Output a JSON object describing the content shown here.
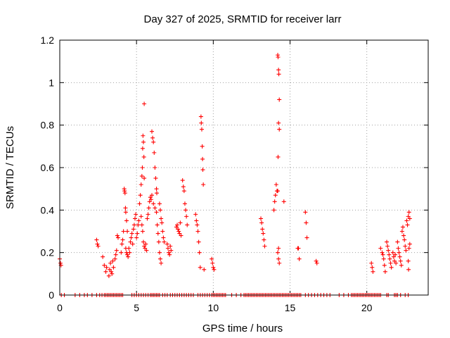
{
  "chart_data": {
    "type": "scatter",
    "title": "Day 327 of 2025, SRMTID for receiver larr",
    "xlabel": "GPS time / hours",
    "ylabel": "SRMTID / TECUs",
    "xlim": [
      0,
      24
    ],
    "ylim": [
      0,
      1.2
    ],
    "xticks": [
      0,
      5,
      10,
      15,
      20
    ],
    "xtick_labels": [
      "0",
      "5",
      "10",
      "15",
      "20"
    ],
    "yticks": [
      0,
      0.2,
      0.4,
      0.6,
      0.8,
      1,
      1.2
    ],
    "ytick_labels": [
      "0",
      "0.2",
      "0.4",
      "0.6",
      "0.8",
      "1",
      "1.2"
    ],
    "grid": true,
    "marker": "+",
    "series": [
      {
        "name": "SRMTID",
        "color": "#ff0000",
        "points": [
          [
            0.0,
            0.17
          ],
          [
            0.05,
            0.15
          ],
          [
            0.08,
            0.14
          ],
          [
            2.4,
            0.26
          ],
          [
            2.45,
            0.24
          ],
          [
            2.5,
            0.23
          ],
          [
            2.8,
            0.18
          ],
          [
            2.9,
            0.14
          ],
          [
            3.0,
            0.11
          ],
          [
            3.05,
            0.13
          ],
          [
            3.2,
            0.09
          ],
          [
            3.25,
            0.12
          ],
          [
            3.3,
            0.15
          ],
          [
            3.35,
            0.11
          ],
          [
            3.4,
            0.1
          ],
          [
            3.45,
            0.16
          ],
          [
            3.5,
            0.13
          ],
          [
            3.6,
            0.17
          ],
          [
            3.65,
            0.19
          ],
          [
            3.7,
            0.21
          ],
          [
            3.75,
            0.28
          ],
          [
            3.8,
            0.27
          ],
          [
            4.0,
            0.2
          ],
          [
            4.05,
            0.24
          ],
          [
            4.1,
            0.26
          ],
          [
            4.15,
            0.3
          ],
          [
            4.2,
            0.5
          ],
          [
            4.22,
            0.49
          ],
          [
            4.25,
            0.48
          ],
          [
            4.28,
            0.41
          ],
          [
            4.3,
            0.39
          ],
          [
            4.35,
            0.35
          ],
          [
            4.4,
            0.3
          ],
          [
            4.3,
            0.22
          ],
          [
            4.35,
            0.2
          ],
          [
            4.4,
            0.19
          ],
          [
            4.45,
            0.18
          ],
          [
            4.5,
            0.22
          ],
          [
            4.55,
            0.2
          ],
          [
            4.6,
            0.25
          ],
          [
            4.65,
            0.27
          ],
          [
            4.7,
            0.29
          ],
          [
            4.75,
            0.24
          ],
          [
            4.8,
            0.31
          ],
          [
            4.85,
            0.33
          ],
          [
            4.9,
            0.36
          ],
          [
            4.95,
            0.38
          ],
          [
            5.0,
            0.27
          ],
          [
            5.05,
            0.29
          ],
          [
            5.1,
            0.33
          ],
          [
            5.15,
            0.35
          ],
          [
            5.2,
            0.43
          ],
          [
            5.25,
            0.47
          ],
          [
            5.3,
            0.52
          ],
          [
            5.35,
            0.56
          ],
          [
            5.38,
            0.6
          ],
          [
            5.4,
            0.69
          ],
          [
            5.42,
            0.75
          ],
          [
            5.45,
            0.72
          ],
          [
            5.48,
            0.65
          ],
          [
            5.5,
            0.55
          ],
          [
            5.5,
            0.9
          ],
          [
            5.3,
            0.37
          ],
          [
            5.35,
            0.33
          ],
          [
            5.4,
            0.3
          ],
          [
            5.45,
            0.25
          ],
          [
            5.5,
            0.23
          ],
          [
            5.55,
            0.22
          ],
          [
            5.6,
            0.24
          ],
          [
            5.65,
            0.21
          ],
          [
            5.7,
            0.36
          ],
          [
            5.75,
            0.38
          ],
          [
            5.8,
            0.41
          ],
          [
            5.85,
            0.44
          ],
          [
            5.9,
            0.46
          ],
          [
            5.95,
            0.45
          ],
          [
            6.0,
            0.77
          ],
          [
            6.05,
            0.74
          ],
          [
            6.1,
            0.72
          ],
          [
            6.15,
            0.67
          ],
          [
            6.2,
            0.6
          ],
          [
            6.25,
            0.55
          ],
          [
            6.3,
            0.5
          ],
          [
            6.32,
            0.48
          ],
          [
            6.0,
            0.47
          ],
          [
            6.1,
            0.43
          ],
          [
            6.2,
            0.41
          ],
          [
            6.3,
            0.39
          ],
          [
            6.35,
            0.33
          ],
          [
            6.4,
            0.29
          ],
          [
            6.45,
            0.25
          ],
          [
            6.5,
            0.2
          ],
          [
            6.55,
            0.17
          ],
          [
            6.6,
            0.15
          ],
          [
            6.5,
            0.43
          ],
          [
            6.55,
            0.4
          ],
          [
            6.6,
            0.36
          ],
          [
            6.65,
            0.34
          ],
          [
            6.7,
            0.3
          ],
          [
            6.75,
            0.27
          ],
          [
            6.8,
            0.25
          ],
          [
            7.0,
            0.24
          ],
          [
            7.05,
            0.22
          ],
          [
            7.1,
            0.2
          ],
          [
            7.15,
            0.19
          ],
          [
            7.2,
            0.23
          ],
          [
            7.25,
            0.21
          ],
          [
            7.6,
            0.32
          ],
          [
            7.65,
            0.33
          ],
          [
            7.7,
            0.31
          ],
          [
            7.75,
            0.3
          ],
          [
            7.8,
            0.29
          ],
          [
            7.85,
            0.34
          ],
          [
            7.9,
            0.28
          ],
          [
            8.0,
            0.54
          ],
          [
            8.05,
            0.51
          ],
          [
            8.1,
            0.49
          ],
          [
            8.15,
            0.43
          ],
          [
            8.2,
            0.4
          ],
          [
            8.25,
            0.37
          ],
          [
            8.3,
            0.33
          ],
          [
            8.85,
            0.38
          ],
          [
            8.9,
            0.35
          ],
          [
            8.95,
            0.33
          ],
          [
            9.0,
            0.3
          ],
          [
            9.05,
            0.25
          ],
          [
            9.1,
            0.2
          ],
          [
            9.15,
            0.13
          ],
          [
            9.2,
            0.84
          ],
          [
            9.22,
            0.81
          ],
          [
            9.25,
            0.78
          ],
          [
            9.28,
            0.7
          ],
          [
            9.3,
            0.64
          ],
          [
            9.32,
            0.59
          ],
          [
            9.35,
            0.52
          ],
          [
            9.4,
            0.12
          ],
          [
            9.9,
            0.17
          ],
          [
            9.95,
            0.15
          ],
          [
            10.0,
            0.13
          ],
          [
            10.05,
            0.12
          ],
          [
            13.1,
            0.36
          ],
          [
            13.15,
            0.34
          ],
          [
            13.2,
            0.31
          ],
          [
            13.25,
            0.29
          ],
          [
            13.3,
            0.26
          ],
          [
            13.35,
            0.23
          ],
          [
            13.95,
            0.4
          ],
          [
            14.0,
            0.44
          ],
          [
            14.05,
            0.47
          ],
          [
            14.1,
            0.52
          ],
          [
            14.15,
            0.49
          ],
          [
            14.2,
            1.13
          ],
          [
            14.22,
            1.12
          ],
          [
            14.25,
            1.06
          ],
          [
            14.27,
            1.04
          ],
          [
            14.3,
            0.92
          ],
          [
            14.25,
            0.81
          ],
          [
            14.3,
            0.78
          ],
          [
            14.22,
            0.65
          ],
          [
            14.2,
            0.49
          ],
          [
            14.25,
            0.22
          ],
          [
            14.2,
            0.2
          ],
          [
            14.25,
            0.17
          ],
          [
            14.3,
            0.15
          ],
          [
            14.6,
            0.44
          ],
          [
            15.5,
            0.22
          ],
          [
            15.55,
            0.22
          ],
          [
            15.6,
            0.17
          ],
          [
            16.0,
            0.39
          ],
          [
            16.05,
            0.34
          ],
          [
            16.1,
            0.27
          ],
          [
            16.7,
            0.16
          ],
          [
            16.75,
            0.15
          ],
          [
            20.3,
            0.15
          ],
          [
            20.35,
            0.13
          ],
          [
            20.4,
            0.11
          ],
          [
            20.9,
            0.22
          ],
          [
            21.0,
            0.2
          ],
          [
            21.05,
            0.19
          ],
          [
            21.1,
            0.17
          ],
          [
            21.15,
            0.14
          ],
          [
            21.2,
            0.11
          ],
          [
            21.3,
            0.25
          ],
          [
            21.35,
            0.23
          ],
          [
            21.4,
            0.21
          ],
          [
            21.45,
            0.19
          ],
          [
            21.5,
            0.17
          ],
          [
            21.55,
            0.15
          ],
          [
            21.6,
            0.13
          ],
          [
            21.7,
            0.2
          ],
          [
            21.75,
            0.18
          ],
          [
            21.8,
            0.16
          ],
          [
            21.85,
            0.19
          ],
          [
            21.9,
            0.15
          ],
          [
            22.0,
            0.25
          ],
          [
            22.05,
            0.22
          ],
          [
            22.1,
            0.2
          ],
          [
            22.15,
            0.18
          ],
          [
            22.2,
            0.16
          ],
          [
            22.25,
            0.14
          ],
          [
            22.3,
            0.3
          ],
          [
            22.35,
            0.32
          ],
          [
            22.4,
            0.28
          ],
          [
            22.45,
            0.26
          ],
          [
            22.5,
            0.23
          ],
          [
            22.55,
            0.21
          ],
          [
            22.6,
            0.35
          ],
          [
            22.65,
            0.33
          ],
          [
            22.7,
            0.37
          ],
          [
            22.75,
            0.39
          ],
          [
            22.8,
            0.36
          ],
          [
            22.8,
            0.24
          ],
          [
            22.75,
            0.22
          ],
          [
            22.7,
            0.16
          ],
          [
            22.72,
            0.12
          ]
        ]
      }
    ],
    "zero_points_x": [
      0.1,
      0.3,
      1.0,
      1.3,
      1.6,
      1.8,
      2.1,
      2.4,
      2.6,
      2.75,
      2.9,
      3.0,
      3.1,
      3.2,
      3.3,
      3.4,
      3.5,
      3.6,
      3.7,
      3.8,
      3.9,
      4.0,
      4.1,
      4.7,
      4.85,
      5.0,
      5.15,
      5.3,
      5.45,
      5.6,
      5.75,
      5.9,
      6.0,
      6.1,
      6.2,
      6.3,
      6.4,
      6.5,
      6.7,
      6.85,
      7.0,
      7.2,
      7.35,
      7.5,
      7.65,
      7.8,
      7.95,
      8.1,
      8.25,
      8.4,
      8.55,
      8.7,
      9.0,
      9.15,
      9.3,
      9.45,
      9.6,
      9.75,
      9.9,
      10.0,
      10.1,
      10.2,
      10.3,
      10.4,
      10.5,
      10.6,
      10.7,
      10.8,
      11.2,
      11.5,
      11.8,
      12.0,
      12.1,
      12.2,
      12.3,
      12.4,
      12.5,
      12.6,
      12.7,
      12.8,
      12.9,
      13.0,
      13.1,
      13.2,
      13.3,
      13.4,
      13.5,
      13.6,
      13.7,
      13.8,
      13.9,
      14.0,
      14.1,
      14.2,
      14.3,
      14.4,
      14.5,
      14.6,
      14.7,
      14.8,
      14.9,
      15.0,
      15.1,
      15.2,
      15.3,
      15.4,
      15.5,
      15.6,
      15.7,
      16.0,
      16.2,
      16.4,
      16.6,
      16.8,
      17.0,
      17.2,
      17.4,
      17.6,
      18.2,
      18.5,
      18.8,
      19.0,
      19.1,
      19.2,
      19.3,
      19.4,
      19.5,
      19.6,
      19.7,
      19.8,
      19.9,
      20.0,
      20.1,
      20.2,
      20.3,
      20.4,
      20.5,
      20.6,
      20.7,
      20.8,
      20.9,
      21.3,
      21.4,
      21.8,
      21.9,
      22.0,
      22.2,
      22.5,
      22.7
    ]
  }
}
